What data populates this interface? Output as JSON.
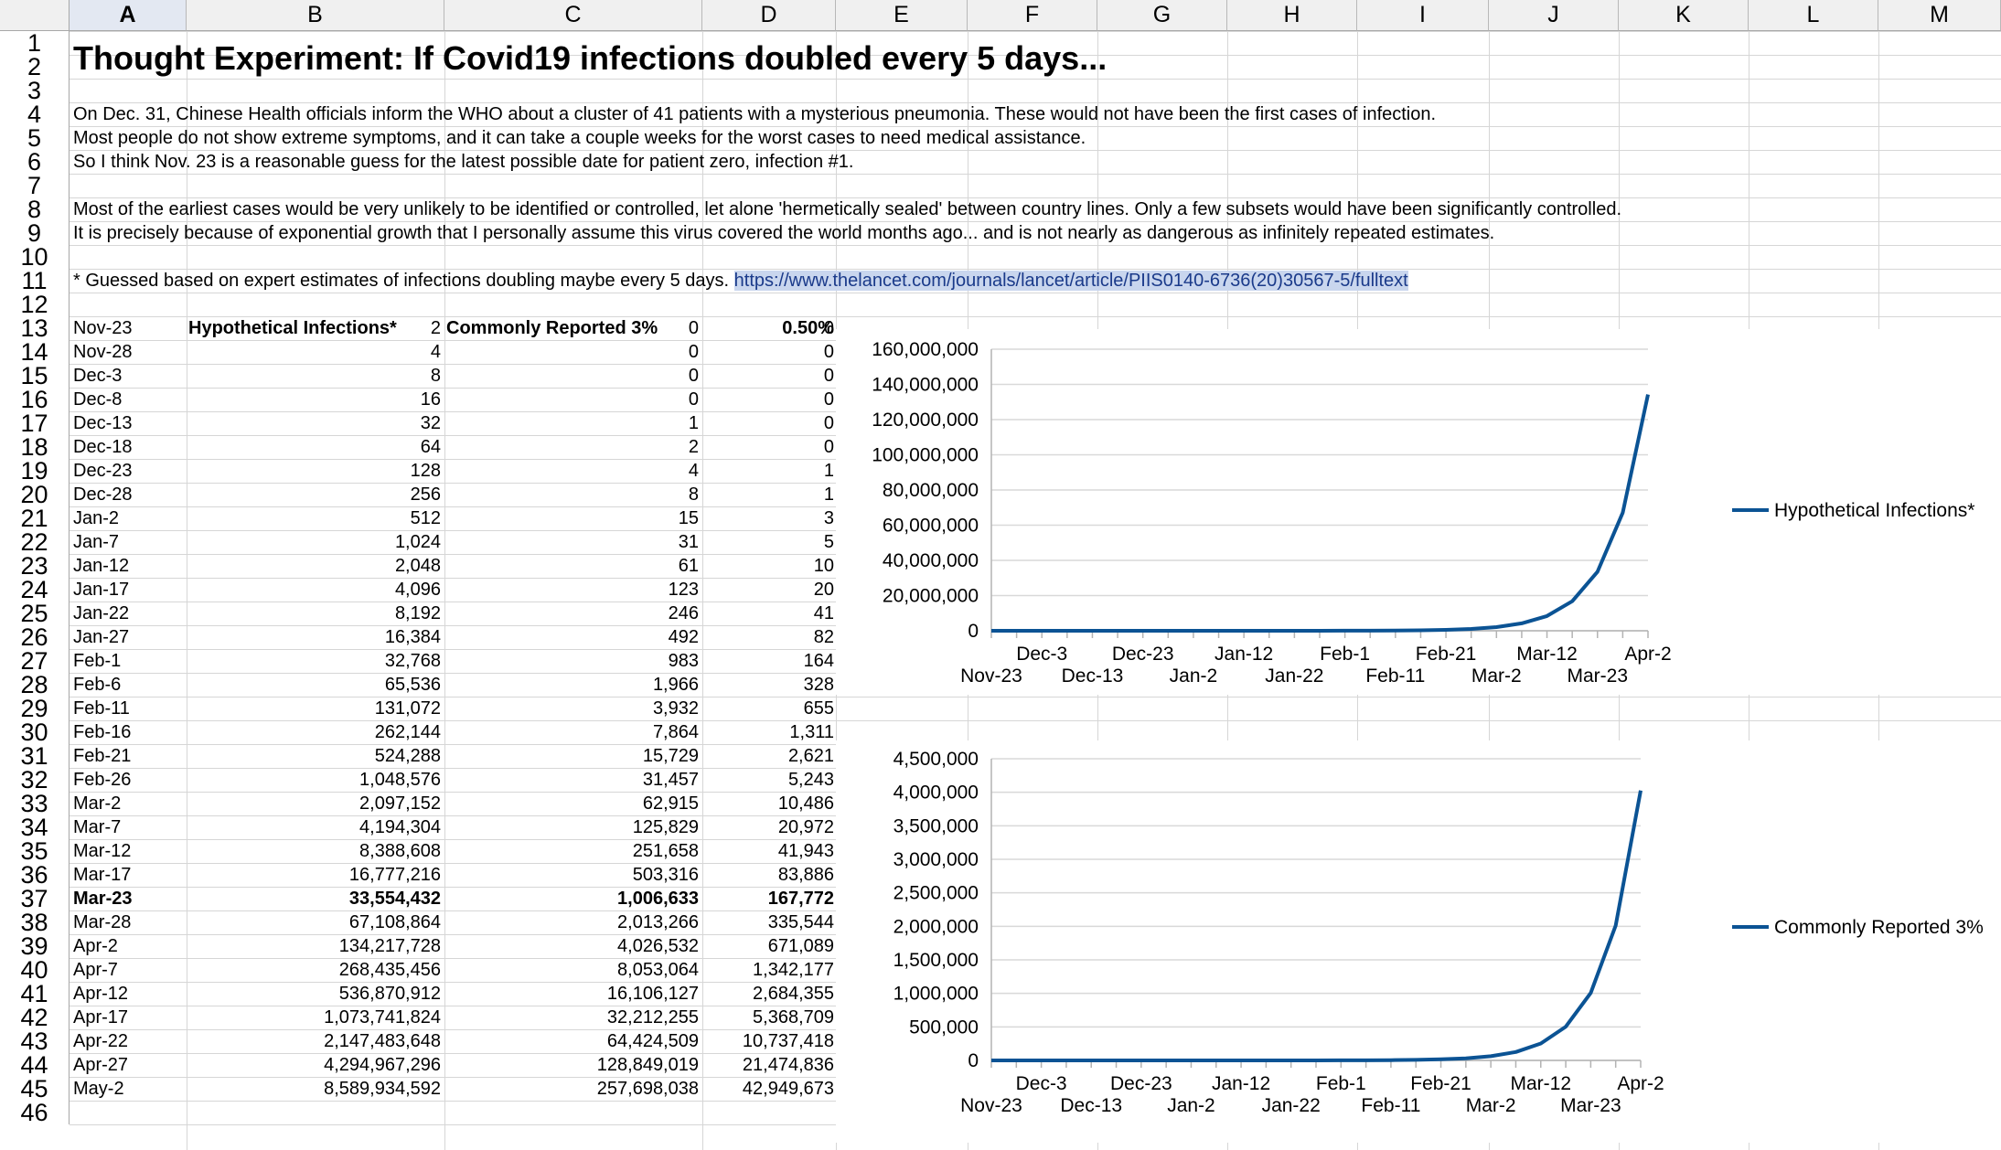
{
  "columns": [
    "A",
    "B",
    "C",
    "D",
    "E",
    "F",
    "G",
    "H",
    "I",
    "J",
    "K",
    "L",
    "M"
  ],
  "selected_column": "A",
  "rows": [
    "1",
    "2",
    "3",
    "4",
    "5",
    "6",
    "7",
    "8",
    "9",
    "10",
    "11",
    "12",
    "13",
    "14",
    "15",
    "16",
    "17",
    "18",
    "19",
    "20",
    "21",
    "22",
    "23",
    "24",
    "25",
    "26",
    "27",
    "28",
    "29",
    "30",
    "31",
    "32",
    "33",
    "34",
    "35",
    "36",
    "37",
    "38",
    "39",
    "40",
    "41",
    "42",
    "43",
    "44",
    "45",
    "46"
  ],
  "title": "Thought Experiment: If Covid19 infections doubled every 5 days...",
  "notes": [
    "On Dec. 31, Chinese Health officials inform the WHO about a cluster of 41 patients with a mysterious pneumonia. These would not have been the first cases of infection.",
    "Most people do not show extreme symptoms, and it can take a couple weeks for the worst cases to need medical assistance.",
    "So I think Nov. 23 is a reasonable guess for the latest possible date for patient zero, infection #1.",
    "Most of the earliest cases would be very unlikely to be identified or controlled, let alone 'hermetically sealed' between country lines. Only a few subsets would have been significantly controlled.",
    "It is precisely because of exponential growth that I personally assume this virus covered the world months ago... and is not nearly as dangerous as infinitely repeated estimates."
  ],
  "footnote": "* Guessed based on expert estimates of infections doubling maybe every 5 days. ",
  "footnote_link": "https://www.thelancet.com/journals/lancet/article/PIIS0140-6736(20)30567-5/fulltext",
  "table": {
    "headers": [
      "Hypothetical Infections*",
      "Commonly Reported 3%",
      "0.50%"
    ],
    "bold_row": "Mar-23",
    "rows": [
      [
        "Nov-23",
        "2",
        "0",
        "0"
      ],
      [
        "Nov-28",
        "4",
        "0",
        "0"
      ],
      [
        "Dec-3",
        "8",
        "0",
        "0"
      ],
      [
        "Dec-8",
        "16",
        "0",
        "0"
      ],
      [
        "Dec-13",
        "32",
        "1",
        "0"
      ],
      [
        "Dec-18",
        "64",
        "2",
        "0"
      ],
      [
        "Dec-23",
        "128",
        "4",
        "1"
      ],
      [
        "Dec-28",
        "256",
        "8",
        "1"
      ],
      [
        "Jan-2",
        "512",
        "15",
        "3"
      ],
      [
        "Jan-7",
        "1,024",
        "31",
        "5"
      ],
      [
        "Jan-12",
        "2,048",
        "61",
        "10"
      ],
      [
        "Jan-17",
        "4,096",
        "123",
        "20"
      ],
      [
        "Jan-22",
        "8,192",
        "246",
        "41"
      ],
      [
        "Jan-27",
        "16,384",
        "492",
        "82"
      ],
      [
        "Feb-1",
        "32,768",
        "983",
        "164"
      ],
      [
        "Feb-6",
        "65,536",
        "1,966",
        "328"
      ],
      [
        "Feb-11",
        "131,072",
        "3,932",
        "655"
      ],
      [
        "Feb-16",
        "262,144",
        "7,864",
        "1,311"
      ],
      [
        "Feb-21",
        "524,288",
        "15,729",
        "2,621"
      ],
      [
        "Feb-26",
        "1,048,576",
        "31,457",
        "5,243"
      ],
      [
        "Mar-2",
        "2,097,152",
        "62,915",
        "10,486"
      ],
      [
        "Mar-7",
        "4,194,304",
        "125,829",
        "20,972"
      ],
      [
        "Mar-12",
        "8,388,608",
        "251,658",
        "41,943"
      ],
      [
        "Mar-17",
        "16,777,216",
        "503,316",
        "83,886"
      ],
      [
        "Mar-23",
        "33,554,432",
        "1,006,633",
        "167,772"
      ],
      [
        "Mar-28",
        "67,108,864",
        "2,013,266",
        "335,544"
      ],
      [
        "Apr-2",
        "134,217,728",
        "4,026,532",
        "671,089"
      ],
      [
        "Apr-7",
        "268,435,456",
        "8,053,064",
        "1,342,177"
      ],
      [
        "Apr-12",
        "536,870,912",
        "16,106,127",
        "2,684,355"
      ],
      [
        "Apr-17",
        "1,073,741,824",
        "32,212,255",
        "5,368,709"
      ],
      [
        "Apr-22",
        "2,147,483,648",
        "64,424,509",
        "10,737,418"
      ],
      [
        "Apr-27",
        "4,294,967,296",
        "128,849,019",
        "21,474,836"
      ],
      [
        "May-2",
        "8,589,934,592",
        "257,698,038",
        "42,949,673"
      ]
    ]
  },
  "colors": {
    "series_line": "#0b5394",
    "link_bg": "#c9d6ee",
    "link_text": "#1a3a8a",
    "selected_header": "#e3e8f2"
  },
  "chart_data": [
    {
      "type": "line",
      "title": "",
      "series": [
        {
          "name": "Hypothetical Infections*",
          "values": [
            2,
            4,
            8,
            16,
            32,
            64,
            128,
            256,
            512,
            1024,
            2048,
            4096,
            8192,
            16384,
            32768,
            65536,
            131072,
            262144,
            524288,
            1048576,
            2097152,
            4194304,
            8388608,
            16777216,
            33554432,
            67108864,
            134217728
          ]
        }
      ],
      "categories": [
        "Nov-23",
        "Nov-28",
        "Dec-3",
        "Dec-8",
        "Dec-13",
        "Dec-18",
        "Dec-23",
        "Dec-28",
        "Jan-2",
        "Jan-7",
        "Jan-12",
        "Jan-17",
        "Jan-22",
        "Jan-27",
        "Feb-1",
        "Feb-6",
        "Feb-11",
        "Feb-16",
        "Feb-21",
        "Feb-26",
        "Mar-2",
        "Mar-7",
        "Mar-12",
        "Mar-17",
        "Mar-23",
        "Mar-28",
        "Apr-2"
      ],
      "tick_labels_upper": [
        "Dec-3",
        "Dec-23",
        "Jan-12",
        "Feb-1",
        "Feb-21",
        "Mar-12",
        "Apr-2"
      ],
      "tick_labels_lower": [
        "Nov-23",
        "Dec-13",
        "Jan-2",
        "Jan-22",
        "Feb-11",
        "Mar-2",
        "Mar-23"
      ],
      "y_ticks": [
        "0",
        "20,000,000",
        "40,000,000",
        "60,000,000",
        "80,000,000",
        "100,000,000",
        "120,000,000",
        "140,000,000",
        "160,000,000"
      ],
      "ylim": [
        0,
        160000000
      ],
      "grid": true,
      "legend": "right"
    },
    {
      "type": "line",
      "title": "",
      "series": [
        {
          "name": "Commonly Reported 3%",
          "values": [
            0,
            0,
            0,
            0,
            1,
            2,
            4,
            8,
            15,
            31,
            61,
            123,
            246,
            492,
            983,
            1966,
            3932,
            7864,
            15729,
            31457,
            62915,
            125829,
            251658,
            503316,
            1006633,
            2013266,
            4026532
          ]
        }
      ],
      "categories": [
        "Nov-23",
        "Nov-28",
        "Dec-3",
        "Dec-8",
        "Dec-13",
        "Dec-18",
        "Dec-23",
        "Dec-28",
        "Jan-2",
        "Jan-7",
        "Jan-12",
        "Jan-17",
        "Jan-22",
        "Jan-27",
        "Feb-1",
        "Feb-6",
        "Feb-11",
        "Feb-16",
        "Feb-21",
        "Feb-26",
        "Mar-2",
        "Mar-7",
        "Mar-12",
        "Mar-17",
        "Mar-23",
        "Mar-28",
        "Apr-2"
      ],
      "tick_labels_upper": [
        "Dec-3",
        "Dec-23",
        "Jan-12",
        "Feb-1",
        "Feb-21",
        "Mar-12",
        "Apr-2"
      ],
      "tick_labels_lower": [
        "Nov-23",
        "Dec-13",
        "Jan-2",
        "Jan-22",
        "Feb-11",
        "Mar-2",
        "Mar-23"
      ],
      "y_ticks": [
        "0",
        "500,000",
        "1,000,000",
        "1,500,000",
        "2,000,000",
        "2,500,000",
        "3,000,000",
        "3,500,000",
        "4,000,000",
        "4,500,000"
      ],
      "ylim": [
        0,
        4500000
      ],
      "grid": true,
      "legend": "right"
    }
  ]
}
